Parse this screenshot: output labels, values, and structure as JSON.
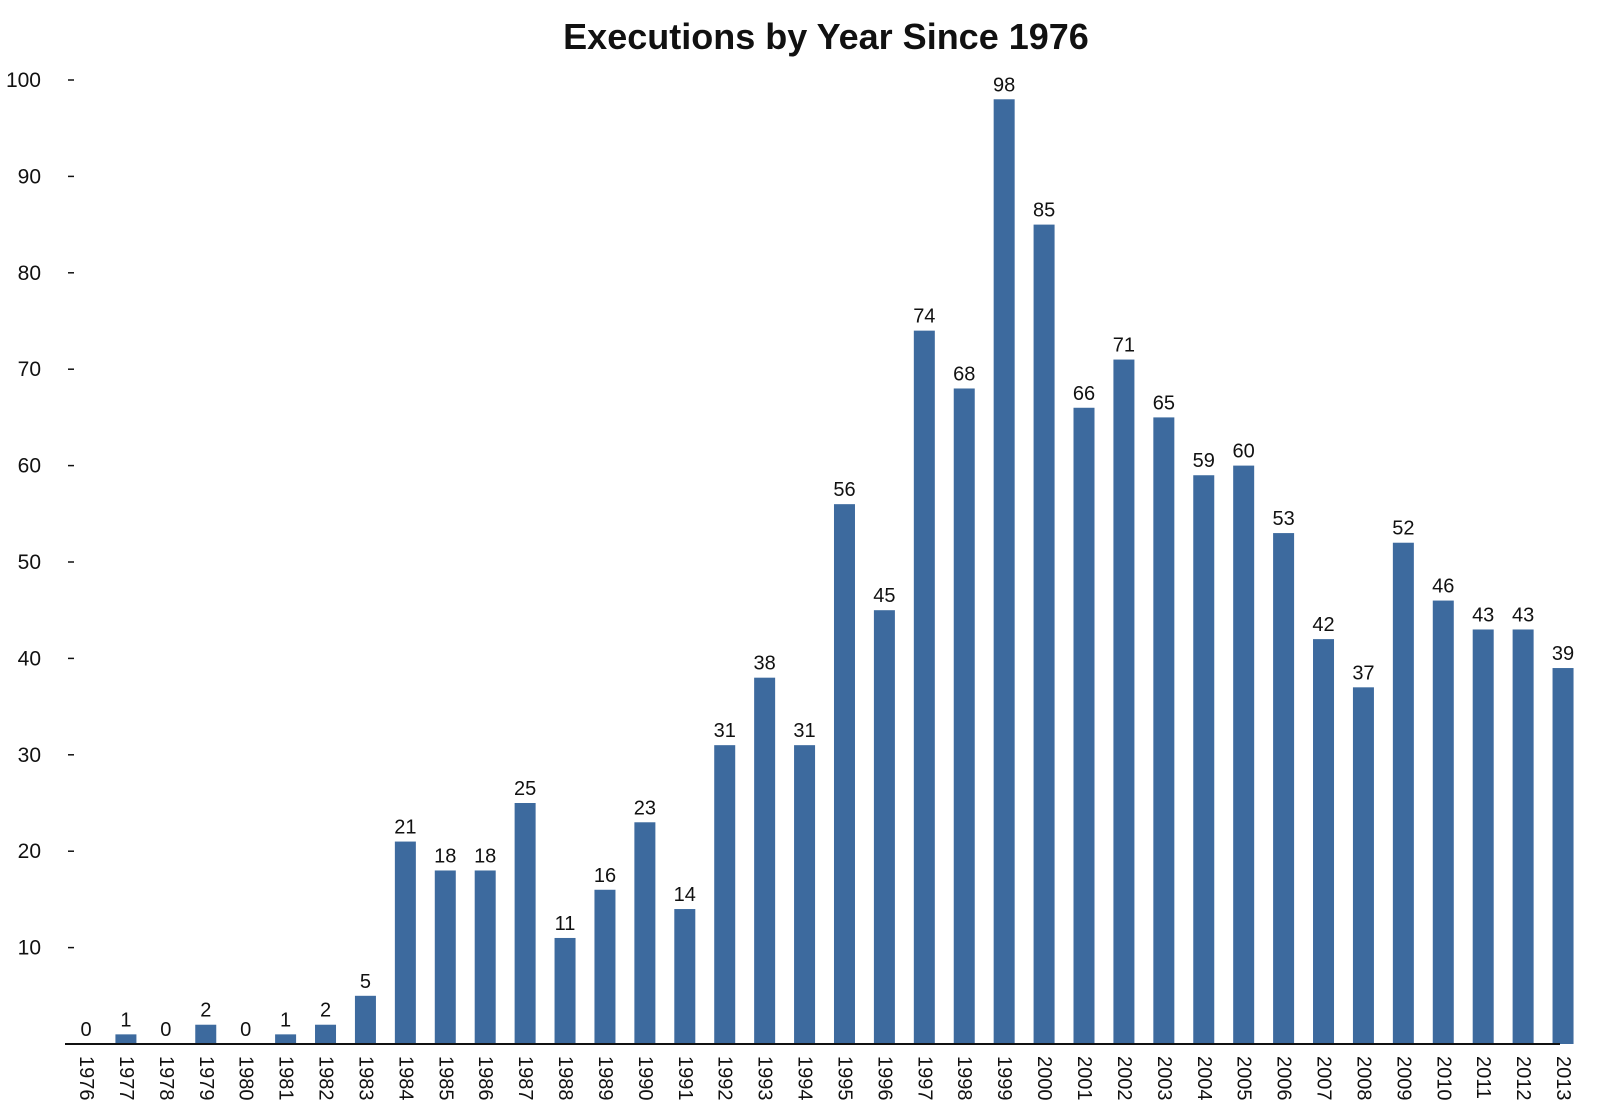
{
  "chart_data": {
    "type": "bar",
    "title": "Executions by Year Since 1976",
    "xlabel": "",
    "ylabel": "",
    "ylim": [
      0,
      100
    ],
    "yticks": [
      10,
      20,
      30,
      40,
      50,
      60,
      70,
      80,
      90,
      100
    ],
    "grid": false,
    "legend": "none",
    "bar_color": "#3d6a9e",
    "categories": [
      "1976",
      "1977",
      "1978",
      "1979",
      "1980",
      "1981",
      "1982",
      "1983",
      "1984",
      "1985",
      "1986",
      "1987",
      "1988",
      "1989",
      "1990",
      "1991",
      "1992",
      "1993",
      "1994",
      "1995",
      "1996",
      "1997",
      "1998",
      "1999",
      "2000",
      "2001",
      "2002",
      "2003",
      "2004",
      "2005",
      "2006",
      "2007",
      "2008",
      "2009",
      "2010",
      "2011",
      "2012",
      "2013"
    ],
    "values": [
      0,
      1,
      0,
      2,
      0,
      1,
      2,
      5,
      21,
      18,
      18,
      25,
      11,
      16,
      23,
      14,
      31,
      38,
      31,
      56,
      45,
      74,
      68,
      98,
      85,
      66,
      71,
      65,
      59,
      60,
      53,
      42,
      37,
      52,
      46,
      43,
      43,
      39
    ]
  }
}
